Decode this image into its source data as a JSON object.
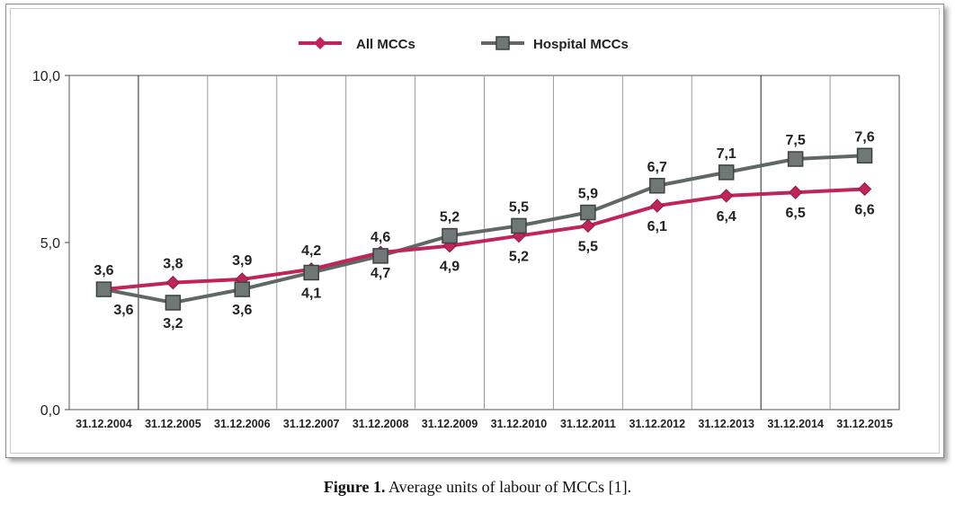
{
  "chart_data": {
    "type": "line",
    "categories": [
      "31.12.2004",
      "31.12.2005",
      "31.12.2006",
      "31.12.2007",
      "31.12.2008",
      "31.12.2009",
      "31.12.2010",
      "31.12.2011",
      "31.12.2012",
      "31.12.2013",
      "31.12.2014",
      "31.12.2015"
    ],
    "series": [
      {
        "name": "All MCCs",
        "color": "#c0245a",
        "marker": "diamond",
        "values": [
          3.6,
          3.8,
          3.9,
          4.2,
          4.7,
          4.9,
          5.2,
          5.5,
          6.1,
          6.4,
          6.5,
          6.6
        ],
        "labels": [
          "3,6",
          "3,8",
          "3,9",
          "4,2",
          "4,7",
          "4,9",
          "5,2",
          "5,5",
          "6,1",
          "6,4",
          "6,5",
          "6,6"
        ]
      },
      {
        "name": "Hospital MCCs",
        "color": "#5f6866",
        "marker": "square",
        "values": [
          3.6,
          3.2,
          3.6,
          4.1,
          4.6,
          5.2,
          5.5,
          5.9,
          6.7,
          7.1,
          7.5,
          7.6
        ],
        "labels": [
          "3,6",
          "3,2",
          "3,6",
          "4,1",
          "4,6",
          "5,2",
          "5,5",
          "5,9",
          "6,7",
          "7,1",
          "7,5",
          "7,6"
        ]
      }
    ],
    "ylim": [
      0,
      10
    ],
    "yticks": [
      0,
      5,
      10
    ],
    "ytick_labels": [
      "0,0",
      "5,0",
      "10,0"
    ],
    "grid": true,
    "legend": "top-center",
    "label_placement": {
      "All MCCs": [
        "above",
        "above",
        "above",
        "above",
        "below",
        "below",
        "below",
        "below",
        "below",
        "below",
        "below",
        "below"
      ],
      "Hospital MCCs": [
        "below",
        "below",
        "below",
        "below",
        "above",
        "above",
        "above",
        "above",
        "above",
        "above",
        "above",
        "above"
      ]
    }
  },
  "caption": {
    "prefix": "Figure 1.",
    "text": " Average units of labour of MCCs [1]."
  }
}
